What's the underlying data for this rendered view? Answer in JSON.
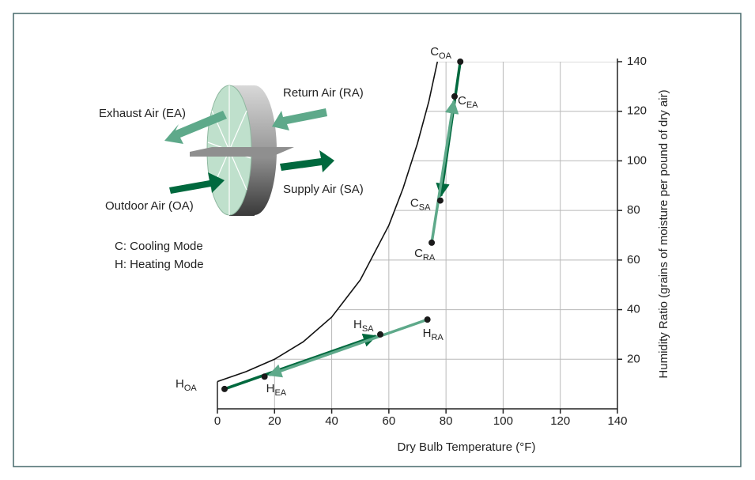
{
  "chart_data": {
    "type": "scatter",
    "x_label": "Dry Bulb Temperature (°F)",
    "y_label": "Humidity Ratio (grains of moisture per pound of dry air)",
    "xlim": [
      0,
      140
    ],
    "ylim": [
      0,
      140
    ],
    "xticks": [
      0,
      20,
      40,
      60,
      80,
      100,
      120,
      140
    ],
    "yticks": [
      20,
      40,
      60,
      80,
      100,
      120,
      140
    ],
    "grid": true,
    "saturation_curve": {
      "x": [
        0,
        10,
        20,
        30,
        40,
        50,
        60,
        65,
        70,
        74,
        77
      ],
      "y": [
        11,
        15,
        20,
        27,
        37,
        52,
        74,
        89,
        107,
        124,
        140
      ],
      "color": "#111111"
    },
    "points": [
      {
        "label": "C",
        "subscript": "OA",
        "x": 85,
        "y": 140
      },
      {
        "label": "C",
        "subscript": "EA",
        "x": 83,
        "y": 126
      },
      {
        "label": "C",
        "subscript": "SA",
        "x": 78,
        "y": 84
      },
      {
        "label": "C",
        "subscript": "RA",
        "x": 75,
        "y": 67
      },
      {
        "label": "H",
        "subscript": "OA",
        "x": 2.5,
        "y": 8
      },
      {
        "label": "H",
        "subscript": "EA",
        "x": 16.5,
        "y": 13
      },
      {
        "label": "H",
        "subscript": "SA",
        "x": 57,
        "y": 30
      },
      {
        "label": "H",
        "subscript": "RA",
        "x": 73.5,
        "y": 36
      }
    ],
    "point_color": "#1a1a1a",
    "arrows": [
      {
        "from": 0,
        "to": 2,
        "color": "#00693e"
      },
      {
        "from": 3,
        "to": 1,
        "color": "#5ea98a"
      },
      {
        "from": 4,
        "to": 6,
        "color": "#00693e"
      },
      {
        "from": 7,
        "to": 5,
        "color": "#5ea98a"
      }
    ],
    "annotations": [
      "Exhaust Air (EA)",
      "Return Air (RA)",
      "Supply Air (SA)",
      "Outdoor Air (OA)",
      "C: Cooling Mode",
      "H: Heating Mode"
    ]
  }
}
